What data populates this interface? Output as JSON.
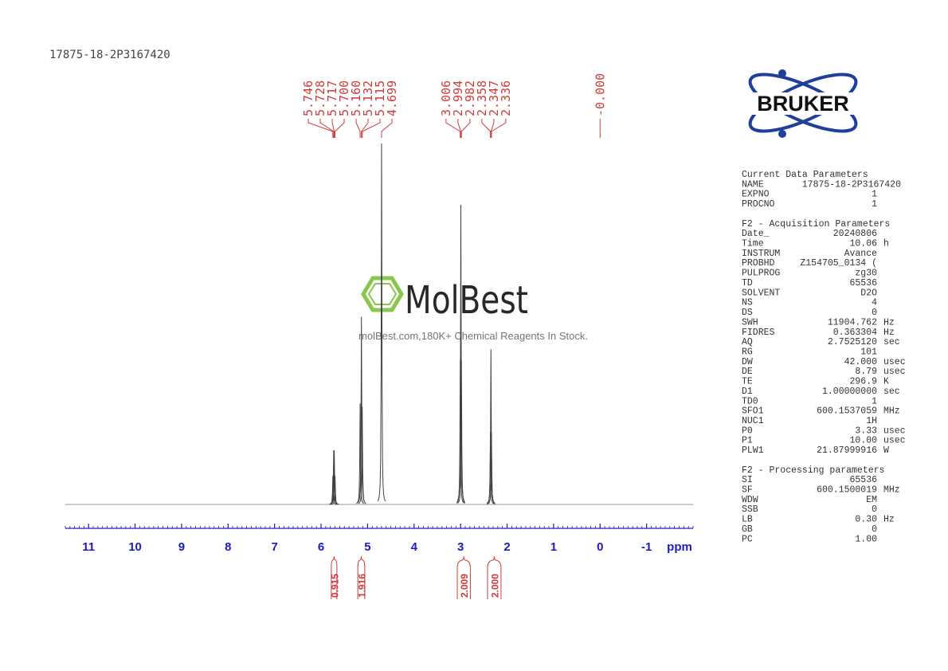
{
  "chart_data": {
    "type": "nmr",
    "title": "17875-18-2P3167420",
    "xlabel": "ppm",
    "xlim": [
      11.5,
      -2
    ],
    "xticks": [
      11,
      10,
      9,
      8,
      7,
      6,
      5,
      4,
      3,
      2,
      1,
      0,
      -1
    ],
    "ylim": [
      0,
      100
    ],
    "axis_color": "#1c1cc0",
    "series": [
      {
        "color": "#404040",
        "x": [
          5.746,
          5.728,
          5.717,
          5.7,
          5.16,
          5.132,
          5.115,
          4.699,
          3.006,
          2.994,
          2.982,
          2.358,
          2.347,
          2.336
        ],
        "values": [
          8,
          15,
          15,
          8,
          28,
          52,
          27,
          100,
          40,
          83,
          40,
          20,
          43,
          20
        ]
      }
    ],
    "peak_labels": {
      "color": "#d03a3a",
      "values": [
        5.746,
        5.728,
        5.717,
        5.7,
        5.16,
        5.132,
        5.115,
        4.699,
        3.006,
        2.994,
        2.982,
        2.358,
        2.347,
        2.336,
        0
      ],
      "value_labels": [
        "5.746",
        "5.728",
        "5.717",
        "5.700",
        "5.160",
        "5.132",
        "5.115",
        "4.699",
        "3.006",
        "2.994",
        "2.982",
        "2.358",
        "2.347",
        "2.336",
        "-0.000"
      ]
    },
    "integrals": {
      "color": "#d03a3a",
      "ranges": [
        [
          5.78,
          5.66
        ],
        [
          5.21,
          5.06
        ],
        [
          3.07,
          2.79
        ],
        [
          2.42,
          2.13
        ]
      ],
      "values": [
        0.915,
        1.916,
        2.009,
        2.0
      ],
      "value_labels": [
        "0.915",
        "1.916",
        "2.009",
        "2.000"
      ]
    }
  },
  "logo": "BRUKER",
  "watermark": {
    "name": "MolBest",
    "tagline": "molBest.com,180K+ Chemical Reagents In Stock."
  },
  "parameters": [
    {
      "title": "Current Data Parameters",
      "rows": [
        [
          "NAME",
          "17875-18-2P3167420"
        ],
        [
          "EXPNO",
          "1"
        ],
        [
          "PROCNO",
          "1"
        ]
      ]
    },
    {
      "title": "F2 - Acquisition Parameters",
      "rows": [
        [
          "Date_",
          "20240806"
        ],
        [
          "Time",
          "10.06",
          "h"
        ],
        [
          "INSTRUM",
          "Avance"
        ],
        [
          "PROBHD",
          "Z154705_0134 ("
        ],
        [
          "PULPROG",
          "zg30"
        ],
        [
          "TD",
          "65536"
        ],
        [
          "SOLVENT",
          "D2O"
        ],
        [
          "NS",
          "4"
        ],
        [
          "DS",
          "0"
        ],
        [
          "SWH",
          "11904.762",
          "Hz"
        ],
        [
          "FIDRES",
          "0.363304",
          "Hz"
        ],
        [
          "AQ",
          "2.7525120",
          "sec"
        ],
        [
          "RG",
          "101"
        ],
        [
          "DW",
          "42.000",
          "usec"
        ],
        [
          "DE",
          "8.79",
          "usec"
        ],
        [
          "TE",
          "296.9",
          "K"
        ],
        [
          "D1",
          "1.00000000",
          "sec"
        ],
        [
          "TD0",
          "1"
        ],
        [
          "SFO1",
          "600.1537059",
          "MHz"
        ],
        [
          "NUC1",
          "1H"
        ],
        [
          "P0",
          "3.33",
          "usec"
        ],
        [
          "P1",
          "10.00",
          "usec"
        ],
        [
          "PLW1",
          "21.87999916",
          "W"
        ]
      ]
    },
    {
      "title": "F2 - Processing parameters",
      "rows": [
        [
          "SI",
          "65536"
        ],
        [
          "SF",
          "600.1500019",
          "MHz"
        ],
        [
          "WDW",
          "EM"
        ],
        [
          "SSB",
          "0"
        ],
        [
          "LB",
          "0.30",
          "Hz"
        ],
        [
          "GB",
          "0"
        ],
        [
          "PC",
          "1.00"
        ]
      ]
    }
  ]
}
